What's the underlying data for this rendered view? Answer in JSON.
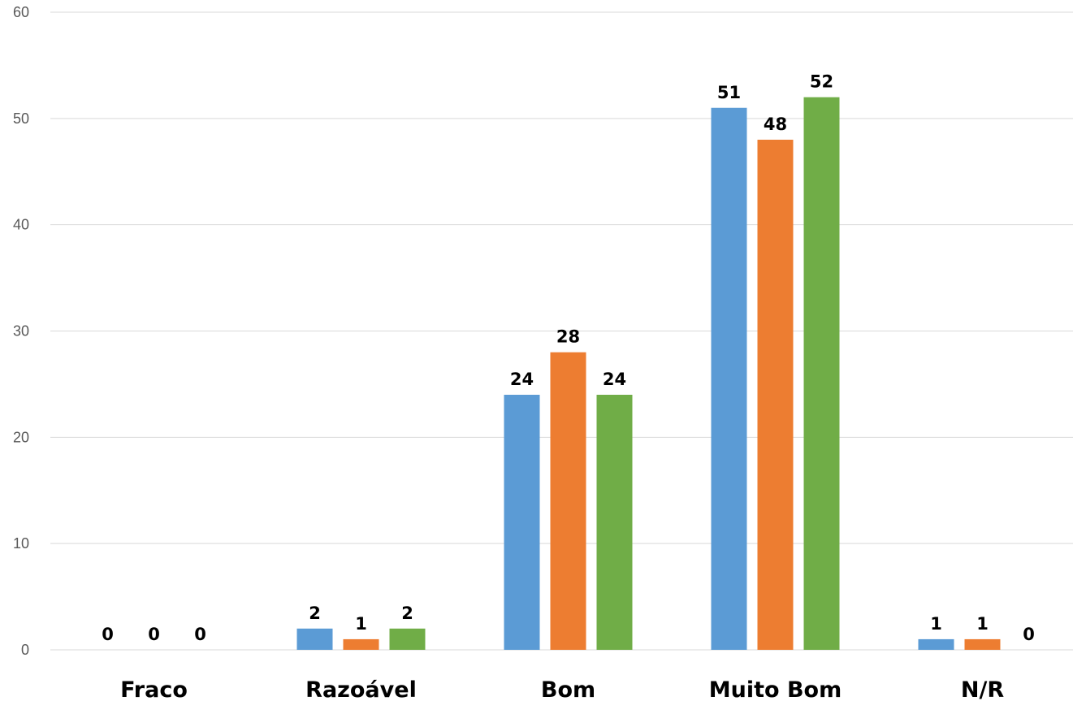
{
  "chart_data": {
    "type": "bar",
    "title": "",
    "xlabel": "",
    "ylabel": "",
    "categories": [
      "Fraco",
      "Razoável",
      "Bom",
      "Muito Bom",
      "N/R"
    ],
    "series": [
      {
        "color": "#5B9BD5",
        "values": [
          0,
          2,
          24,
          51,
          1
        ]
      },
      {
        "color": "#ED7D31",
        "values": [
          0,
          1,
          28,
          48,
          1
        ]
      },
      {
        "color": "#70AD47",
        "values": [
          0,
          2,
          24,
          52,
          0
        ]
      }
    ],
    "ylim": [
      0,
      60
    ],
    "yticks": [
      0,
      10,
      20,
      30,
      40,
      50,
      60
    ],
    "grid": true,
    "legend": "none",
    "data_labels": true
  }
}
